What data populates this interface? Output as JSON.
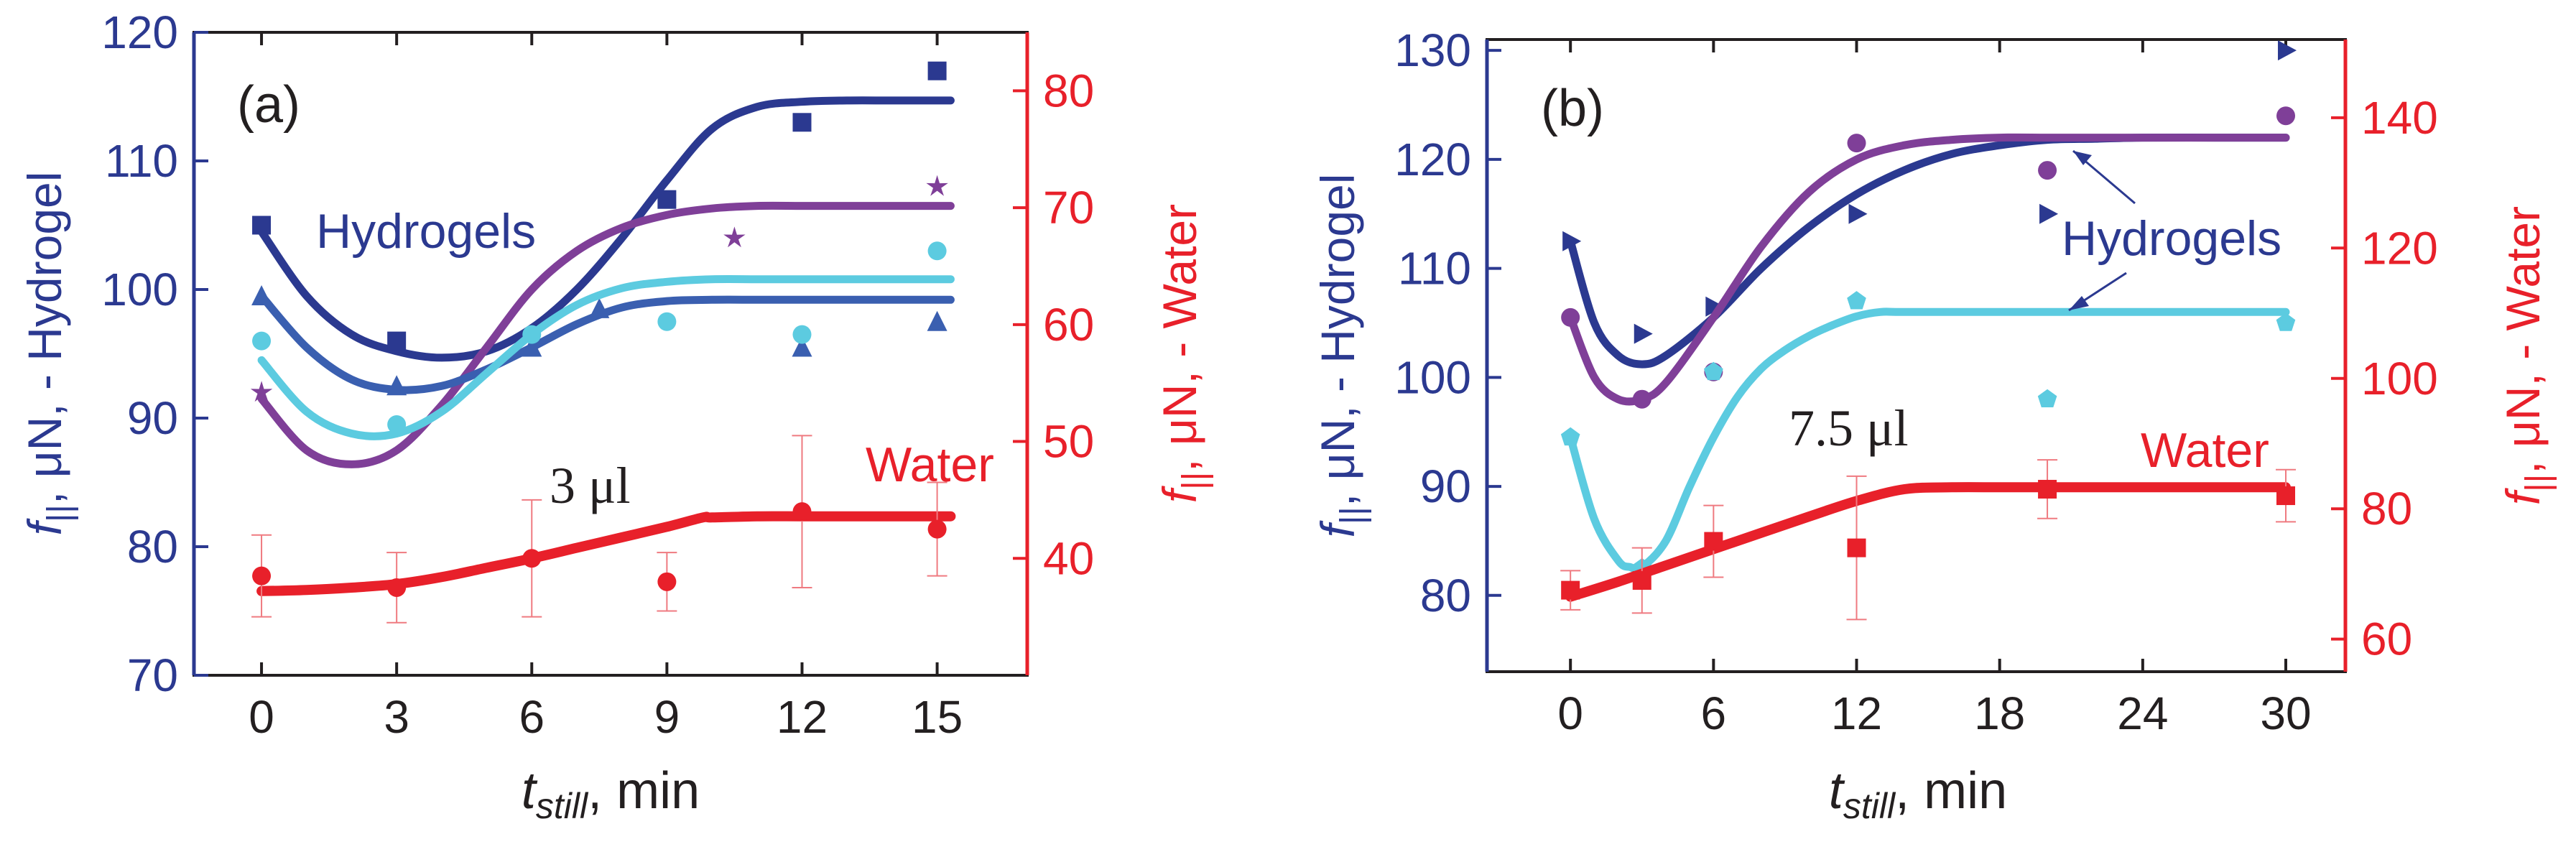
{
  "chart_data": [
    {
      "type": "line",
      "panel_label": "(a)",
      "volume_label": "3 μl",
      "hydrogel_label": "Hydrogels",
      "water_label": "Water",
      "xlabel_main": "t",
      "xlabel_sub": "still",
      "xlabel_unit": ", min",
      "ylabel_left_main": "f",
      "ylabel_left_sub": "||",
      "ylabel_left_unit": ", μN, - Hydrogel",
      "ylabel_right_main": "f",
      "ylabel_right_sub": "||",
      "ylabel_right_unit": ", μN, - Water",
      "xlim": [
        -1.5,
        17
      ],
      "ylim_left": [
        70,
        120
      ],
      "ylim_right": [
        30,
        85
      ],
      "xticks": [
        "0",
        "3",
        "6",
        "9",
        "12",
        "15"
      ],
      "xtick_values": [
        0,
        3,
        6,
        9,
        12,
        15
      ],
      "yticks_left": [
        "70",
        "80",
        "90",
        "100",
        "110",
        "120"
      ],
      "ytick_values_left": [
        70,
        80,
        90,
        100,
        110,
        120
      ],
      "yticks_right": [
        "40",
        "50",
        "60",
        "70",
        "80"
      ],
      "ytick_values_right": [
        40,
        50,
        60,
        70,
        80
      ],
      "series": [
        {
          "name": "Hydrogel 1 (navy)",
          "axis": "left",
          "color": "#2b3990",
          "marker": "square",
          "x": [
            0,
            3,
            9,
            12,
            15
          ],
          "y": [
            105,
            96,
            107,
            113,
            117
          ],
          "fit_x": [
            0,
            1,
            2,
            3,
            4,
            5,
            6,
            7,
            8,
            9,
            10,
            11,
            12,
            13,
            14,
            15.3
          ],
          "fit_y": [
            104.5,
            99.5,
            96.5,
            95.2,
            94.7,
            95.2,
            97,
            100,
            104,
            108.5,
            112.5,
            114.2,
            114.6,
            114.7,
            114.7,
            114.7
          ]
        },
        {
          "name": "Hydrogel 2 (purple)",
          "axis": "left",
          "color": "#7f3f98",
          "marker": "star",
          "x": [
            0,
            10.5,
            15
          ],
          "y": [
            92,
            104,
            108
          ],
          "fit_x": [
            0,
            1,
            2,
            3,
            4,
            5,
            6,
            7,
            8,
            9,
            10,
            11,
            12,
            13,
            14,
            15.3
          ],
          "fit_y": [
            91.5,
            87.5,
            86.4,
            87.5,
            91,
            95.5,
            100,
            103,
            104.8,
            105.8,
            106.3,
            106.5,
            106.5,
            106.5,
            106.5,
            106.5
          ]
        },
        {
          "name": "Hydrogel 3 (blue)",
          "axis": "left",
          "color": "#3a5fb0",
          "marker": "triangle",
          "x": [
            0,
            3,
            6,
            7.5,
            12,
            15
          ],
          "y": [
            99.5,
            92.5,
            95.5,
            98.5,
            95.5,
            97.5
          ],
          "fit_x": [
            0,
            1,
            2,
            3,
            4,
            5,
            6,
            7,
            8,
            9,
            10,
            11,
            12,
            13,
            14,
            15.3
          ],
          "fit_y": [
            99.5,
            95.5,
            93,
            92.2,
            92.5,
            93.8,
            95.5,
            97.3,
            98.6,
            99.1,
            99.2,
            99.2,
            99.2,
            99.2,
            99.2,
            99.2
          ]
        },
        {
          "name": "Hydrogel 4 (cyan)",
          "axis": "left",
          "color": "#5ccbe0",
          "marker": "circle",
          "x": [
            0,
            3,
            6,
            9,
            12,
            15
          ],
          "y": [
            96,
            89.5,
            96.5,
            97.5,
            96.5,
            103
          ],
          "fit_x": [
            0,
            1,
            2,
            3,
            4,
            5,
            6,
            7,
            8,
            9,
            10,
            11,
            12,
            13,
            14,
            15.3
          ],
          "fit_y": [
            94.5,
            90.5,
            88.8,
            88.8,
            90.5,
            93.5,
            96.5,
            98.8,
            100.1,
            100.6,
            100.8,
            100.8,
            100.8,
            100.8,
            100.8,
            100.8
          ]
        },
        {
          "name": "Water",
          "axis": "right",
          "color": "#e8202a",
          "marker": "circle",
          "x": [
            0,
            3,
            6,
            9,
            12,
            15
          ],
          "y": [
            38.5,
            37.5,
            40,
            38,
            44,
            42.5
          ],
          "err": [
            3.5,
            3,
            5,
            2.5,
            6.5,
            4
          ],
          "fit_x": [
            0,
            1,
            2,
            3,
            4,
            5,
            6,
            7,
            8,
            9,
            9.8,
            10,
            11,
            12,
            13,
            14,
            15.3
          ],
          "fit_y": [
            37.2,
            37.3,
            37.5,
            37.8,
            38.4,
            39.2,
            40,
            40.9,
            41.8,
            42.7,
            43.5,
            43.5,
            43.6,
            43.6,
            43.6,
            43.6,
            43.6
          ]
        }
      ]
    },
    {
      "type": "line",
      "panel_label": "(b)",
      "volume_label": "7.5 μl",
      "hydrogel_label": "Hydrogels",
      "water_label": "Water",
      "xlabel_main": "t",
      "xlabel_sub": "still",
      "xlabel_unit": ", min",
      "ylabel_left_main": "f",
      "ylabel_left_sub": "||",
      "ylabel_left_unit": ", μN, - Hydrogel",
      "ylabel_right_main": "f",
      "ylabel_right_sub": "||",
      "ylabel_right_unit": ", μN, - Water",
      "xlim": [
        -3.5,
        32.5
      ],
      "ylim_left": [
        73,
        131
      ],
      "ylim_right": [
        55,
        152
      ],
      "xticks": [
        "0",
        "6",
        "12",
        "18",
        "24",
        "30"
      ],
      "xtick_values": [
        0,
        6,
        12,
        18,
        24,
        30
      ],
      "yticks_left": [
        "80",
        "90",
        "100",
        "110",
        "120",
        "130"
      ],
      "ytick_values_left": [
        80,
        90,
        100,
        110,
        120,
        130
      ],
      "yticks_right": [
        "60",
        "80",
        "100",
        "120",
        "140"
      ],
      "ytick_values_right": [
        60,
        80,
        100,
        120,
        140
      ],
      "series": [
        {
          "name": "Hydrogel 1 (navy)",
          "axis": "left",
          "color": "#2b3990",
          "marker": "triangle-right",
          "x": [
            0,
            3,
            6,
            12,
            20,
            30
          ],
          "y": [
            112.5,
            104,
            106.5,
            115,
            115,
            130
          ],
          "fit_x": [
            0,
            1,
            2,
            3,
            4,
            6,
            8,
            10,
            12,
            14,
            16,
            18,
            20,
            22,
            24,
            27,
            30
          ],
          "fit_y": [
            112.5,
            105,
            102,
            101.2,
            102,
            105.5,
            110,
            113.8,
            116.8,
            119,
            120.5,
            121.3,
            121.8,
            121.9,
            122,
            122,
            122
          ]
        },
        {
          "name": "Hydrogel 2 (purple)",
          "axis": "left",
          "color": "#7f3f98",
          "marker": "circle",
          "x": [
            0,
            3,
            6,
            12,
            20,
            30
          ],
          "y": [
            105.5,
            98,
            100.5,
            121.5,
            119,
            124
          ],
          "fit_x": [
            0,
            1,
            2,
            3,
            4,
            6,
            8,
            10,
            12,
            14,
            16,
            18,
            20,
            22,
            24,
            27,
            30
          ],
          "fit_y": [
            105.5,
            100,
            98,
            98,
            99.5,
            105.5,
            112,
            117,
            120,
            121.3,
            121.8,
            122,
            122,
            122,
            122,
            122,
            122
          ]
        },
        {
          "name": "Hydrogel 3 (cyan)",
          "axis": "left",
          "color": "#5ccbe0",
          "marker": "pentagon",
          "x": [
            0,
            3,
            6,
            12,
            20,
            30
          ],
          "y": [
            94.5,
            82.5,
            100.5,
            107,
            98,
            105
          ],
          "fit_x": [
            0,
            1,
            2,
            2.5,
            3,
            4,
            5,
            6,
            7,
            8,
            9,
            10,
            11,
            12,
            13,
            14,
            18,
            24,
            30
          ],
          "fit_y": [
            94.5,
            87,
            83.2,
            82.6,
            82.6,
            85,
            90,
            94.5,
            98.2,
            100.8,
            102.5,
            103.8,
            104.8,
            105.6,
            106,
            106,
            106,
            106,
            106
          ]
        },
        {
          "name": "Water",
          "axis": "right",
          "color": "#e8202a",
          "marker": "square",
          "x": [
            0,
            3,
            6,
            12,
            20,
            30
          ],
          "y": [
            67.5,
            69,
            75,
            74,
            83,
            82
          ],
          "err": [
            3,
            5,
            5.5,
            11,
            4.5,
            4
          ],
          "fit_x": [
            0,
            2,
            4,
            6,
            8,
            10,
            12,
            14,
            16,
            18,
            20,
            24,
            30
          ],
          "fit_y": [
            66.5,
            68.8,
            71.3,
            73.8,
            76.3,
            78.8,
            81.2,
            83,
            83.3,
            83.3,
            83.3,
            83.3,
            83.3
          ]
        }
      ]
    }
  ]
}
